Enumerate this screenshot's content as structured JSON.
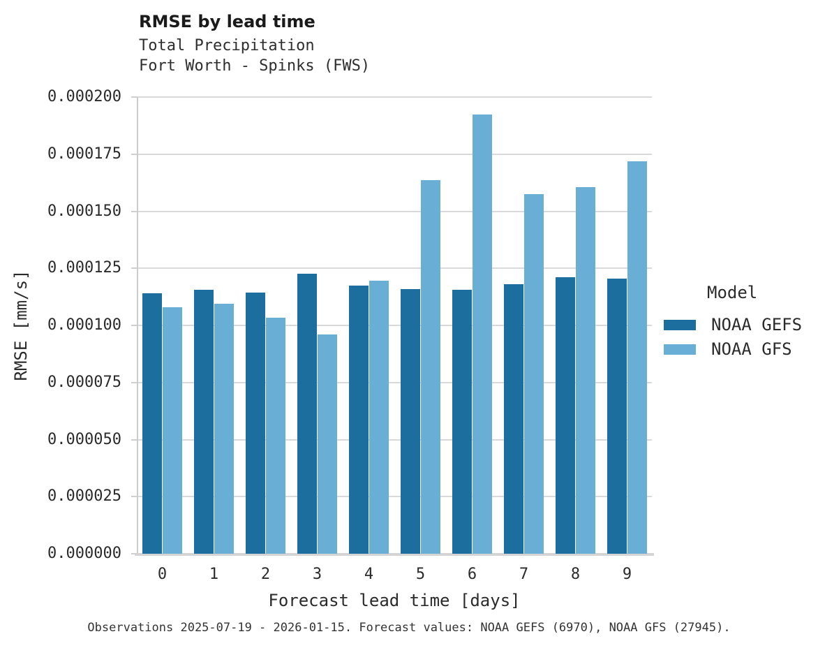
{
  "chart_data": {
    "type": "bar",
    "title": "RMSE by lead time",
    "subtitle_lines": [
      "Total Precipitation",
      "Fort Worth - Spinks (FWS)"
    ],
    "xlabel": "Forecast lead time [days]",
    "ylabel": "RMSE [mm/s]",
    "categories": [
      "0",
      "1",
      "2",
      "3",
      "4",
      "5",
      "6",
      "7",
      "8",
      "9"
    ],
    "series": [
      {
        "name": "NOAA GEFS",
        "color": "#1c6e9e",
        "values": [
          0.000114,
          0.0001155,
          0.0001145,
          0.0001225,
          0.0001175,
          0.000116,
          0.0001155,
          0.000118,
          0.000121,
          0.0001205
        ]
      },
      {
        "name": "NOAA GFS",
        "color": "#69aed5",
        "values": [
          0.000108,
          0.0001095,
          0.0001035,
          9.6e-05,
          0.0001195,
          0.0001635,
          0.0001925,
          0.0001575,
          0.0001605,
          0.000172
        ]
      }
    ],
    "ylim": [
      0,
      0.0002
    ],
    "ytick_step": 2.5e-05,
    "ytick_labels": [
      "0.000000",
      "0.000025",
      "0.000050",
      "0.000075",
      "0.000100",
      "0.000125",
      "0.000150",
      "0.000175",
      "0.000200"
    ],
    "grid": "horizontal",
    "legend_title": "Model",
    "legend_position": "right",
    "caption": "Observations 2025-07-19 - 2026-01-15. Forecast values: NOAA GEFS (6970), NOAA GFS (27945)."
  }
}
